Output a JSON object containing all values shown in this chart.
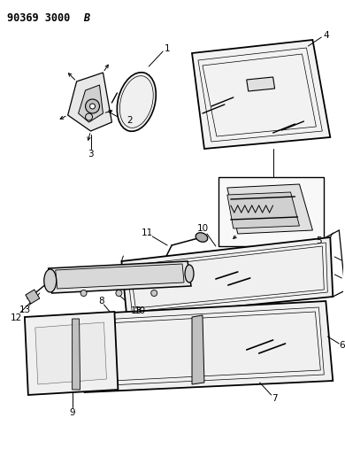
{
  "bg_color": "#ffffff",
  "line_color": "#000000",
  "header_text": "90369 3000B",
  "fig_width": 3.9,
  "fig_height": 5.33,
  "dpi": 100
}
